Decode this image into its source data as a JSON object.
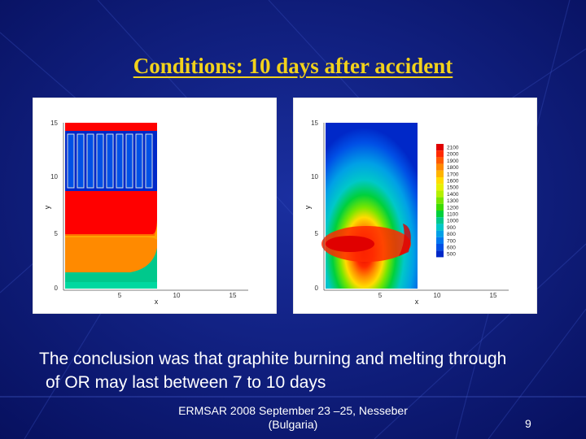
{
  "slide": {
    "title": "Conditions: 10 days after accident",
    "body_line1": "The conclusion was that graphite burning and melting through",
    "body_line2": "of OR may last between 7 to 10 days",
    "footer_line1": "ERMSAR 2008  September 23 –25, Nesseber",
    "footer_line2": "(Bulgaria)",
    "page_number": "9",
    "title_color": "#f2d21b",
    "background_color": "#0d1a7a"
  },
  "left_plot": {
    "xlabel": "x",
    "ylabel": "y",
    "x_ticks": [
      "5",
      "10",
      "15"
    ],
    "y_ticks": [
      "0",
      "5",
      "10",
      "15"
    ]
  },
  "right_plot": {
    "xlabel": "x",
    "ylabel": "y",
    "x_ticks": [
      "5",
      "10",
      "15"
    ],
    "y_ticks": [
      "0",
      "5",
      "10",
      "15"
    ]
  },
  "legend": {
    "levels": [
      "2100",
      "2000",
      "1900",
      "1800",
      "1700",
      "1600",
      "1500",
      "1400",
      "1300",
      "1200",
      "1100",
      "1000",
      "900",
      "800",
      "700",
      "600",
      "500"
    ],
    "colors": [
      "#e00000",
      "#ff2a00",
      "#ff5a00",
      "#ff8a00",
      "#ffb400",
      "#ffdc00",
      "#e6f000",
      "#b4f000",
      "#78e600",
      "#3cdc00",
      "#00d03c",
      "#00c88c",
      "#00c8c8",
      "#00a0e6",
      "#0078f0",
      "#0050e6",
      "#0028c8"
    ]
  }
}
